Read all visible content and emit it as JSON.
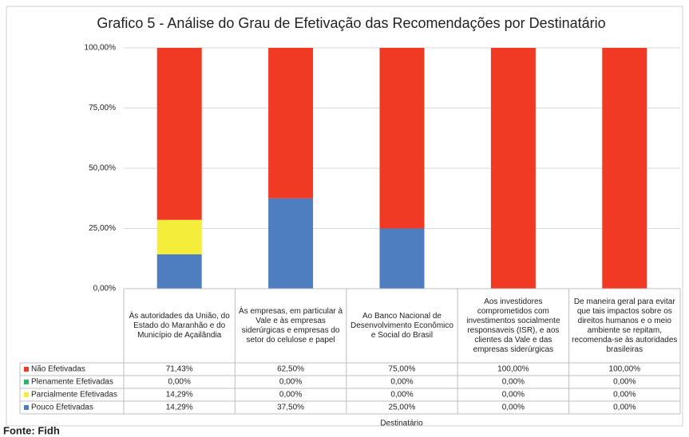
{
  "chart_data": {
    "type": "stacked_bar",
    "title": "Grafico 5 - Análise do Grau de Efetivação das Recomendações por Destinatário",
    "x_label": "Destinatário",
    "source": "Fonte: Fidh",
    "categories": [
      "Às autoridades da União, do Estado do Maranhão e do Município de Açailândia",
      "Às empresas, em particular à Vale e às empresas siderúrgicas e empresas do setor do celulose e papel",
      "Ao Banco Nacional de Desenvolvimento Econômico e Social do Brasil",
      "Aos investidores comprometidos com investimentos socialmente responsaveis (ISR), e aos clientes da Vale e das empresas siderúrgicas",
      "De maneira geral para evitar que tais impactos sobre os direitos humanos e o meio ambiente se repitam, recomenda-se às autoridades brasileiras"
    ],
    "series": [
      {
        "name": "Não Efetivadas",
        "color": "#f03a24",
        "values": [
          71.43,
          62.5,
          75,
          100,
          100
        ],
        "value_labels": [
          "71,43%",
          "62,50%",
          "75,00%",
          "100,00%",
          "100,00%"
        ]
      },
      {
        "name": "Plenamente Efetivadas",
        "color": "#2eb36a",
        "values": [
          0,
          0,
          0,
          0,
          0
        ],
        "value_labels": [
          "0,00%",
          "0,00%",
          "0,00%",
          "0,00%",
          "0,00%"
        ]
      },
      {
        "name": "Parcialmente Efetivadas",
        "color": "#f4ee3a",
        "values": [
          14.29,
          0,
          0,
          0,
          0
        ],
        "value_labels": [
          "14,29%",
          "0,00%",
          "0,00%",
          "0,00%",
          "0,00%"
        ]
      },
      {
        "name": "Pouco Efetivadas",
        "color": "#4f7ec0",
        "values": [
          14.29,
          37.5,
          25,
          0,
          0
        ],
        "value_labels": [
          "14,29%",
          "37,50%",
          "25,00%",
          "0,00%",
          "0,00%"
        ]
      }
    ],
    "ylim": [
      0,
      100
    ],
    "yticks": [
      {
        "value": 0,
        "label": "0,00%"
      },
      {
        "value": 25,
        "label": "25,00%"
      },
      {
        "value": 50,
        "label": "50,00%"
      },
      {
        "value": 75,
        "label": "75,00%"
      },
      {
        "value": 100,
        "label": "100,00%"
      }
    ],
    "grid": true
  }
}
